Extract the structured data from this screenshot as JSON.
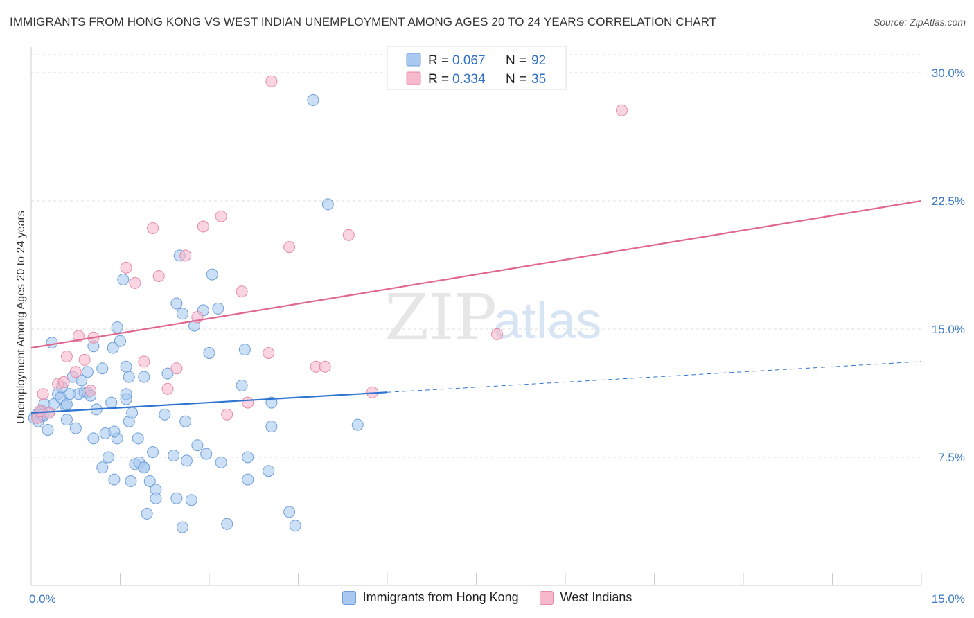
{
  "title": "IMMIGRANTS FROM HONG KONG VS WEST INDIAN UNEMPLOYMENT AMONG AGES 20 TO 24 YEARS CORRELATION CHART",
  "source": "Source: ZipAtlas.com",
  "watermark": {
    "zip": "ZIP",
    "atlas": "atlas"
  },
  "colors": {
    "blue_fill": "#a9c9f0",
    "blue_stroke": "#6f9fd8",
    "blue_line": "#2f74d0",
    "pink_fill": "#f6b8cb",
    "pink_stroke": "#e58aa8",
    "pink_line": "#e0668f",
    "tick_text": "#3b78c4",
    "grid": "#dddddd"
  },
  "legend": {
    "rows": [
      {
        "r_label": "R =",
        "r_value": "0.067",
        "n_label": "N =",
        "n_value": "92"
      },
      {
        "r_label": "R =",
        "r_value": "0.334",
        "n_label": "N =",
        "n_value": "35"
      }
    ]
  },
  "bottom_legend": [
    "Immigrants from Hong Kong",
    "West Indians"
  ],
  "chart_data": {
    "type": "scatter",
    "title": "IMMIGRANTS FROM HONG KONG VS WEST INDIAN UNEMPLOYMENT AMONG AGES 20 TO 24 YEARS CORRELATION CHART",
    "xlabel": "",
    "ylabel": "Unemployment Among Ages 20 to 24 years",
    "xlim": [
      0,
      15
    ],
    "ylim": [
      0,
      31.5
    ],
    "x_tick_labels": [
      "0.0%",
      "15.0%"
    ],
    "y_ticks": [
      7.5,
      15.0,
      22.5,
      30.0
    ],
    "y_tick_labels": [
      "7.5%",
      "15.0%",
      "22.5%",
      "30.0%"
    ],
    "grid": true,
    "legend_position": "top-center",
    "series": [
      {
        "name": "Immigrants from Hong Kong",
        "color": "#a9c9f0",
        "trend": {
          "x": [
            0,
            6.0
          ],
          "y": [
            10.1,
            11.3
          ],
          "dashed_to": [
            15,
            13.1
          ]
        },
        "points": [
          [
            0.05,
            9.8
          ],
          [
            0.1,
            10.0
          ],
          [
            0.12,
            9.6
          ],
          [
            0.15,
            10.1
          ],
          [
            0.18,
            10.2
          ],
          [
            0.2,
            9.9
          ],
          [
            0.22,
            10.6
          ],
          [
            0.28,
            9.1
          ],
          [
            0.3,
            10.1
          ],
          [
            0.35,
            14.2
          ],
          [
            0.38,
            10.6
          ],
          [
            0.45,
            11.2
          ],
          [
            0.5,
            11.0
          ],
          [
            0.52,
            11.6
          ],
          [
            0.58,
            10.5
          ],
          [
            0.6,
            9.7
          ],
          [
            0.65,
            11.2
          ],
          [
            0.7,
            12.2
          ],
          [
            0.75,
            9.2
          ],
          [
            0.8,
            11.2
          ],
          [
            0.85,
            12.0
          ],
          [
            0.9,
            11.3
          ],
          [
            0.95,
            11.3
          ],
          [
            0.95,
            12.5
          ],
          [
            1.0,
            11.1
          ],
          [
            1.05,
            14.0
          ],
          [
            1.05,
            8.6
          ],
          [
            1.1,
            10.3
          ],
          [
            1.2,
            6.9
          ],
          [
            1.2,
            12.7
          ],
          [
            1.25,
            8.9
          ],
          [
            1.3,
            7.5
          ],
          [
            1.35,
            10.7
          ],
          [
            1.38,
            13.9
          ],
          [
            1.4,
            6.2
          ],
          [
            1.45,
            15.1
          ],
          [
            1.45,
            8.6
          ],
          [
            1.5,
            14.3
          ],
          [
            1.55,
            17.9
          ],
          [
            1.6,
            11.2
          ],
          [
            1.6,
            12.8
          ],
          [
            1.65,
            12.2
          ],
          [
            1.65,
            9.6
          ],
          [
            1.68,
            6.1
          ],
          [
            1.7,
            10.1
          ],
          [
            1.75,
            7.1
          ],
          [
            1.8,
            8.6
          ],
          [
            1.82,
            7.2
          ],
          [
            1.9,
            6.9
          ],
          [
            1.9,
            6.9
          ],
          [
            1.9,
            12.2
          ],
          [
            1.95,
            4.2
          ],
          [
            2.0,
            6.1
          ],
          [
            2.05,
            7.8
          ],
          [
            2.1,
            5.6
          ],
          [
            2.1,
            5.1
          ],
          [
            2.25,
            10.0
          ],
          [
            2.4,
            7.6
          ],
          [
            2.45,
            5.1
          ],
          [
            2.45,
            16.5
          ],
          [
            2.5,
            19.3
          ],
          [
            2.55,
            3.4
          ],
          [
            2.55,
            15.9
          ],
          [
            2.6,
            9.6
          ],
          [
            2.62,
            7.3
          ],
          [
            2.7,
            5.0
          ],
          [
            2.75,
            15.2
          ],
          [
            2.8,
            8.2
          ],
          [
            2.9,
            16.1
          ],
          [
            2.95,
            7.7
          ],
          [
            3.0,
            13.6
          ],
          [
            3.05,
            18.2
          ],
          [
            3.15,
            16.2
          ],
          [
            3.2,
            7.2
          ],
          [
            3.3,
            3.6
          ],
          [
            3.55,
            11.7
          ],
          [
            3.6,
            13.8
          ],
          [
            3.65,
            6.2
          ],
          [
            3.65,
            7.5
          ],
          [
            4.0,
            6.7
          ],
          [
            4.05,
            9.3
          ],
          [
            4.05,
            10.7
          ],
          [
            4.35,
            4.3
          ],
          [
            4.45,
            3.5
          ],
          [
            4.75,
            28.4
          ],
          [
            5.0,
            22.3
          ],
          [
            5.5,
            9.4
          ],
          [
            1.4,
            9.0
          ],
          [
            0.6,
            10.6
          ],
          [
            0.2,
            10.0
          ],
          [
            2.3,
            12.4
          ],
          [
            1.6,
            10.9
          ]
        ]
      },
      {
        "name": "West Indians",
        "color": "#f6b8cb",
        "trend": {
          "x": [
            0,
            15
          ],
          "y": [
            13.9,
            22.5
          ]
        },
        "points": [
          [
            0.1,
            9.8
          ],
          [
            0.15,
            10.2
          ],
          [
            0.2,
            11.2
          ],
          [
            0.3,
            10.1
          ],
          [
            0.45,
            11.8
          ],
          [
            0.55,
            11.9
          ],
          [
            0.6,
            13.4
          ],
          [
            0.75,
            12.5
          ],
          [
            0.8,
            14.6
          ],
          [
            0.9,
            13.2
          ],
          [
            1.0,
            11.4
          ],
          [
            1.05,
            14.5
          ],
          [
            1.6,
            18.6
          ],
          [
            1.75,
            17.7
          ],
          [
            1.9,
            13.1
          ],
          [
            2.05,
            20.9
          ],
          [
            2.15,
            18.1
          ],
          [
            2.3,
            11.5
          ],
          [
            2.45,
            12.7
          ],
          [
            2.6,
            19.3
          ],
          [
            2.8,
            15.7
          ],
          [
            2.9,
            21.0
          ],
          [
            3.2,
            21.6
          ],
          [
            3.3,
            10.0
          ],
          [
            3.55,
            17.2
          ],
          [
            3.65,
            10.7
          ],
          [
            4.0,
            13.6
          ],
          [
            4.05,
            29.5
          ],
          [
            4.35,
            19.8
          ],
          [
            4.8,
            12.8
          ],
          [
            4.95,
            12.8
          ],
          [
            5.35,
            20.5
          ],
          [
            5.75,
            11.3
          ],
          [
            7.85,
            14.7
          ],
          [
            9.95,
            27.8
          ]
        ]
      }
    ]
  }
}
